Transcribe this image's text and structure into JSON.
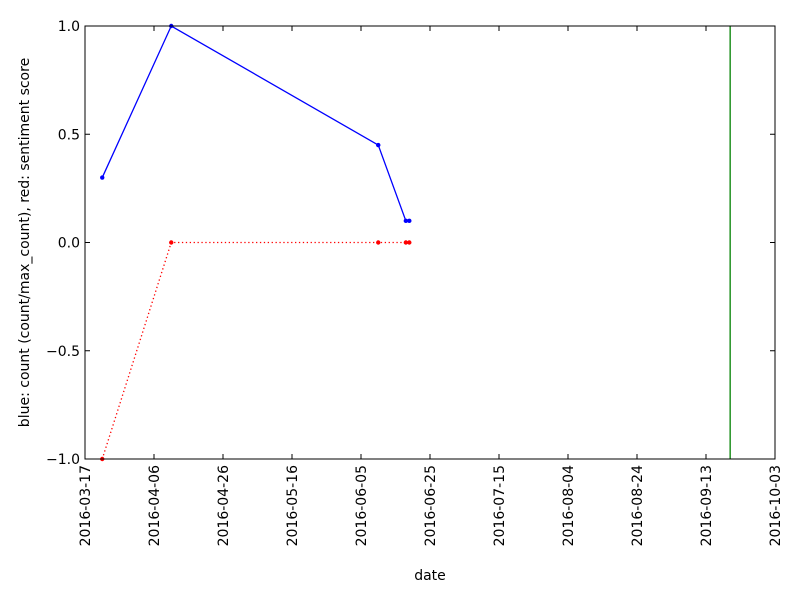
{
  "chart_data": {
    "type": "line",
    "xlabel": "date",
    "ylabel": "blue: count (count/max_count), red: sentiment score",
    "xlim": [
      "2016-03-17",
      "2016-10-03"
    ],
    "ylim": [
      -1.0,
      1.0
    ],
    "x_ticks": [
      "2016-03-17",
      "2016-04-06",
      "2016-04-26",
      "2016-05-16",
      "2016-06-05",
      "2016-06-25",
      "2016-07-15",
      "2016-08-04",
      "2016-08-24",
      "2016-09-13",
      "2016-10-03"
    ],
    "y_ticks": [
      -1.0,
      -0.5,
      0.0,
      0.5,
      1.0
    ],
    "y_tick_labels": [
      "−1.0",
      "−0.5",
      "0.0",
      "0.5",
      "1.0"
    ],
    "grid": false,
    "series": [
      {
        "color": "#0000ff",
        "style": "solid",
        "marker": "dot",
        "x": [
          "2016-03-22",
          "2016-04-11",
          "2016-06-10",
          "2016-06-18",
          "2016-06-19"
        ],
        "y": [
          0.3,
          1.0,
          0.45,
          0.1,
          0.1
        ]
      },
      {
        "color": "#ff0000",
        "style": "dotted",
        "marker": "dot",
        "x": [
          "2016-03-22",
          "2016-04-11",
          "2016-06-10",
          "2016-06-18",
          "2016-06-19"
        ],
        "y": [
          -1.0,
          0.0,
          0.0,
          0.0,
          0.0
        ]
      }
    ],
    "vlines": [
      {
        "x": "2016-09-20",
        "color": "#008000"
      }
    ]
  }
}
